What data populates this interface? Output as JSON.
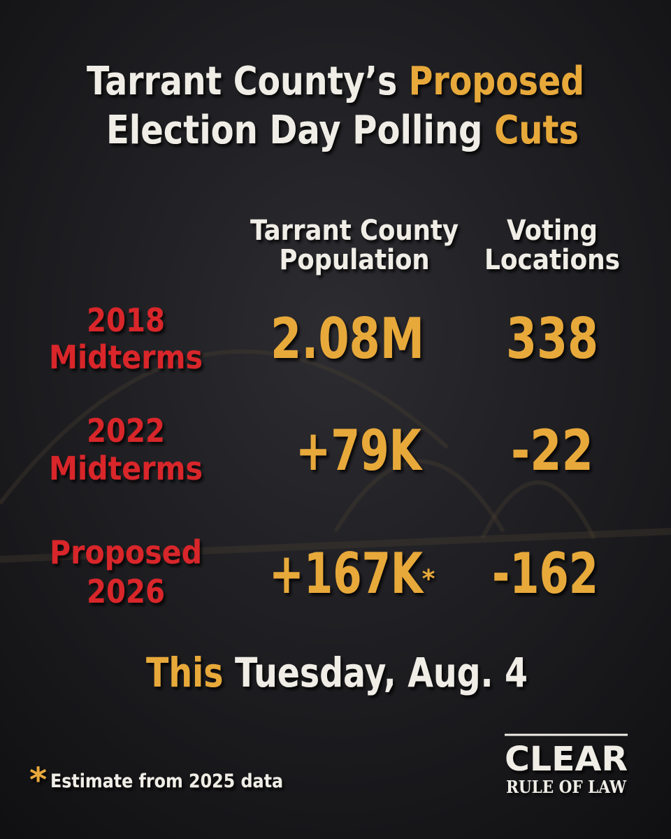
{
  "header": {
    "title": {
      "line1": {
        "white": "Tarrant County’s",
        "accent": "Proposed"
      },
      "line2": {
        "white": "Election Day Polling",
        "accent": "Cuts"
      }
    }
  },
  "columns": {
    "population": [
      "Tarrant County",
      "Population"
    ],
    "locations": [
      "Voting",
      "Locations"
    ]
  },
  "rows": [
    {
      "label": [
        "2018",
        "Midterms"
      ],
      "population": "2.08M",
      "locations": "338"
    },
    {
      "label": [
        "2022",
        "Midterms"
      ],
      "population": "+79K",
      "locations": "-22"
    },
    {
      "label": [
        "Proposed",
        "2026"
      ],
      "population": "+167K",
      "population_mark": "*",
      "locations": "-162"
    }
  ],
  "footer": {
    "accent": "This",
    "white": "Tuesday, Aug. 4"
  },
  "note": {
    "mark": "*",
    "text": "Estimate from 2025 data"
  },
  "logo": {
    "name": "CLEAR",
    "tagline": "RULE OF LAW"
  }
}
